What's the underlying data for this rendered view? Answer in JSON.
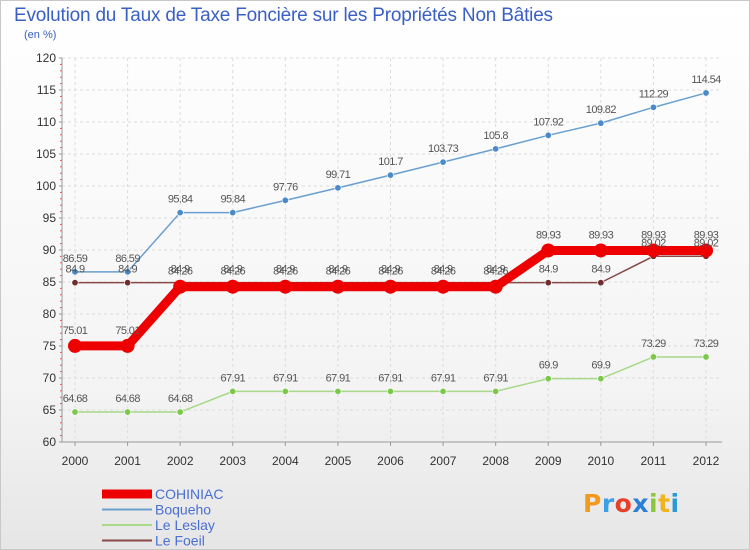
{
  "header": {
    "title": "Evolution du Taux de Taxe Foncière sur les Propriétés Non Bâties",
    "unit": "(en %)"
  },
  "logo": {
    "letters": [
      "P",
      "r",
      "o",
      "x",
      "i",
      "t",
      "i"
    ],
    "colors": [
      "#f39a1e",
      "#3aa0e6",
      "#e6402a",
      "#2a7fd6",
      "#8cc63e",
      "#f0b41e",
      "#2a9ad6"
    ]
  },
  "chart_data": {
    "type": "line",
    "title": "Evolution du Taux de Taxe Foncière sur les Propriétés Non Bâties",
    "ylabel": "(en %)",
    "xlabel": "",
    "ylim": [
      60,
      120
    ],
    "yticks": [
      60,
      65,
      70,
      75,
      80,
      85,
      90,
      95,
      100,
      105,
      110,
      115,
      120
    ],
    "x": [
      "2000",
      "2001",
      "2002",
      "2003",
      "2004",
      "2005",
      "2006",
      "2007",
      "2008",
      "2009",
      "2010",
      "2011",
      "2012"
    ],
    "legend_position": "bottom-left",
    "series": [
      {
        "name": "Boqueho",
        "color": "#6aa0cf",
        "marker": "#4a8ac8",
        "values": [
          86.59,
          86.59,
          95.84,
          95.84,
          97.76,
          99.71,
          101.7,
          103.73,
          105.8,
          107.92,
          109.82,
          112.29,
          114.54
        ],
        "labels": [
          "86.59",
          "86.59",
          "95.84",
          "95.84",
          "97.76",
          "99.71",
          "101.7",
          "103.73",
          "105.8",
          "107.92",
          "109.82",
          "112.29",
          "114.54"
        ]
      },
      {
        "name": "Le Leslay",
        "color": "#a8d888",
        "marker": "#7cc84a",
        "values": [
          64.68,
          64.68,
          64.68,
          67.91,
          67.91,
          67.91,
          67.91,
          67.91,
          67.91,
          69.9,
          69.9,
          73.29,
          73.29
        ],
        "labels": [
          "64.68",
          "64.68",
          "64.68",
          "67.91",
          "67.91",
          "67.91",
          "67.91",
          "67.91",
          "67.91",
          "69.9",
          "69.9",
          "73.29",
          "73.29"
        ]
      },
      {
        "name": "Le Foeil",
        "color": "#8a4848",
        "marker": "#6e2e2e",
        "values": [
          84.9,
          84.9,
          84.9,
          84.9,
          84.9,
          84.9,
          84.9,
          84.9,
          84.9,
          84.9,
          84.9,
          89.02,
          89.02
        ],
        "labels": [
          "84.9",
          "84.9",
          "84.9",
          "84.9",
          "84.9",
          "84.9",
          "84.9",
          "84.9",
          "84.9",
          "84.9",
          "84.9",
          "89.02",
          "89.02"
        ]
      },
      {
        "name": "COHINIAC",
        "color": "#ee0000",
        "marker": "#ee0000",
        "values": [
          75.01,
          75.01,
          84.26,
          84.26,
          84.26,
          84.26,
          84.26,
          84.26,
          84.26,
          89.93,
          89.93,
          89.93,
          89.93
        ],
        "labels": [
          "75.01",
          "75.01",
          "84.26",
          "84.26",
          "84.26",
          "84.26",
          "84.26",
          "84.26",
          "84.26",
          "89.93",
          "89.93",
          "89.93",
          "89.93"
        ]
      }
    ],
    "legend": [
      {
        "name": "COHINIAC",
        "color": "#ee0000",
        "text_color": "#4a6fd0"
      },
      {
        "name": "Boqueho",
        "color": "#6aa0cf",
        "text_color": "#4a6fd0"
      },
      {
        "name": "Le Leslay",
        "color": "#a8d888",
        "text_color": "#4a6fd0"
      },
      {
        "name": "Le Foeil",
        "color": "#8a4848",
        "text_color": "#4a6fd0"
      }
    ]
  }
}
